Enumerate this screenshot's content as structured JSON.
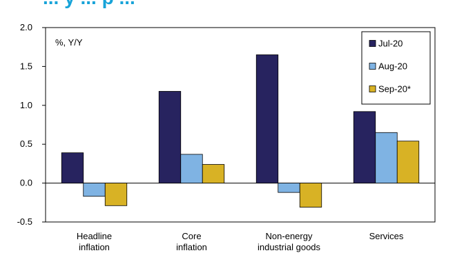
{
  "title": "... y ... p ...",
  "chart_data": {
    "type": "bar",
    "ylabel": "%, Y/Y",
    "ylim": [
      -0.5,
      2.0
    ],
    "yticks": [
      "2.0",
      "1.5",
      "1.0",
      "0.5",
      "0.0",
      "-0.5"
    ],
    "ytick_values": [
      2.0,
      1.5,
      1.0,
      0.5,
      0.0,
      -0.5
    ],
    "categories": [
      [
        "Headline",
        "inflation"
      ],
      [
        "Core",
        "inflation"
      ],
      [
        "Non-energy",
        "industrial goods"
      ],
      [
        "Services"
      ]
    ],
    "series": [
      {
        "name": "Jul-20",
        "color": "#27235f",
        "values": [
          0.39,
          1.18,
          1.65,
          0.92
        ]
      },
      {
        "name": "Aug-20",
        "color": "#7fb3e3",
        "values": [
          -0.17,
          0.37,
          -0.12,
          0.65
        ]
      },
      {
        "name": "Sep-20*",
        "color": "#d8b225",
        "values": [
          -0.29,
          0.24,
          -0.31,
          0.54
        ]
      }
    ],
    "legend_position": "top-right",
    "grid": false
  }
}
